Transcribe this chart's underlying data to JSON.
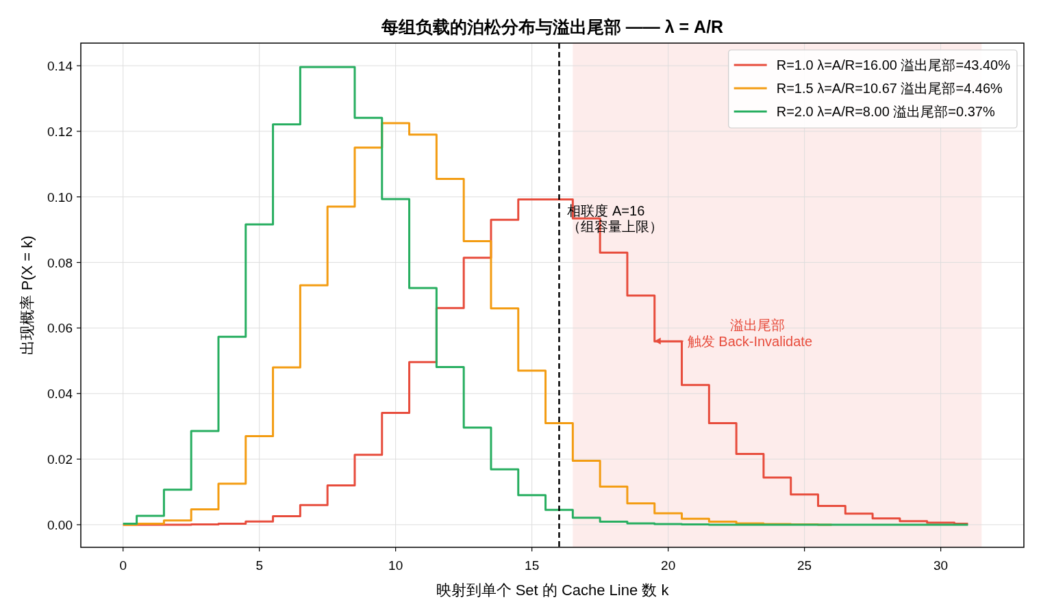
{
  "chart_data": {
    "type": "step",
    "title": "每组负载的泊松分布与溢出尾部 —— λ = A/R",
    "xlabel": "映射到单个 Set 的 Cache Line 数  k",
    "ylabel": "出现概率  P(X = k)",
    "x": [
      0,
      1,
      2,
      3,
      4,
      5,
      6,
      7,
      8,
      9,
      10,
      11,
      12,
      13,
      14,
      15,
      16,
      17,
      18,
      19,
      20,
      21,
      22,
      23,
      24,
      25,
      26,
      27,
      28,
      29,
      30,
      31
    ],
    "series": [
      {
        "name": "R=1.0  λ=A/R=16.00  溢出尾部=43.40%",
        "color": "#e74c3c",
        "values": [
          0.0,
          0.0,
          0.0,
          0.0001,
          0.0003,
          0.001,
          0.0026,
          0.006,
          0.012,
          0.0213,
          0.0341,
          0.0496,
          0.0661,
          0.0814,
          0.093,
          0.0992,
          0.0992,
          0.0934,
          0.083,
          0.0699,
          0.0559,
          0.0426,
          0.031,
          0.0216,
          0.0144,
          0.0092,
          0.0057,
          0.0034,
          0.0019,
          0.0011,
          0.0006,
          0.0003
        ]
      },
      {
        "name": "R=1.5  λ=A/R=10.67  溢出尾部=4.46%",
        "color": "#f39c12",
        "values": [
          0.0,
          0.0003,
          0.0013,
          0.0047,
          0.0125,
          0.027,
          0.048,
          0.073,
          0.097,
          0.115,
          0.1225,
          0.119,
          0.1055,
          0.0865,
          0.066,
          0.047,
          0.031,
          0.0195,
          0.0116,
          0.0065,
          0.0035,
          0.0018,
          0.0009,
          0.0004,
          0.0002,
          0.0001,
          0.0,
          null,
          null,
          null,
          null,
          null
        ]
      },
      {
        "name": "R=2.0  λ=A/R=8.00  溢出尾部=0.37%",
        "color": "#27ae60",
        "values": [
          0.0003,
          0.0027,
          0.0107,
          0.0286,
          0.0573,
          0.0916,
          0.1221,
          0.1396,
          0.1396,
          0.1241,
          0.0993,
          0.0722,
          0.0481,
          0.0296,
          0.0169,
          0.009,
          0.0045,
          0.0021,
          0.0009,
          0.0004,
          0.0002,
          0.0001,
          0.0,
          0.0,
          0.0,
          0.0,
          0.0,
          0.0,
          0.0,
          0.0,
          0.0,
          0.0
        ]
      }
    ],
    "xlim": [
      -1.55,
      33.05
    ],
    "ylim": [
      -0.0069,
      0.1469
    ],
    "xticks": [
      0,
      5,
      10,
      15,
      20,
      25,
      30
    ],
    "yticks": [
      {
        "value": 0,
        "label": "0.00"
      },
      {
        "value": 0.02,
        "label": "0.02"
      },
      {
        "value": 0.04,
        "label": "0.04"
      },
      {
        "value": 0.06,
        "label": "0.06"
      },
      {
        "value": 0.08,
        "label": "0.08"
      },
      {
        "value": 0.1,
        "label": "0.10"
      },
      {
        "value": 0.12,
        "label": "0.12"
      },
      {
        "value": 0.14,
        "label": "0.14"
      }
    ],
    "ref_lines": [
      {
        "axis": "x",
        "value": 16,
        "color": "#000000",
        "line_style": "dashed"
      }
    ],
    "bands": [
      {
        "axis": "x",
        "from": 16.5,
        "to": 31.5,
        "color": "#fdeceb"
      }
    ],
    "annotations": [
      "相联度 A=16\n（组容量上限）",
      "溢出尾部",
      {
        "text": "触发 Back-Invalidate",
        "x": 19.5,
        "y": 0.056
      }
    ],
    "grid": true,
    "legend": "top right",
    "line_style": "solid"
  }
}
